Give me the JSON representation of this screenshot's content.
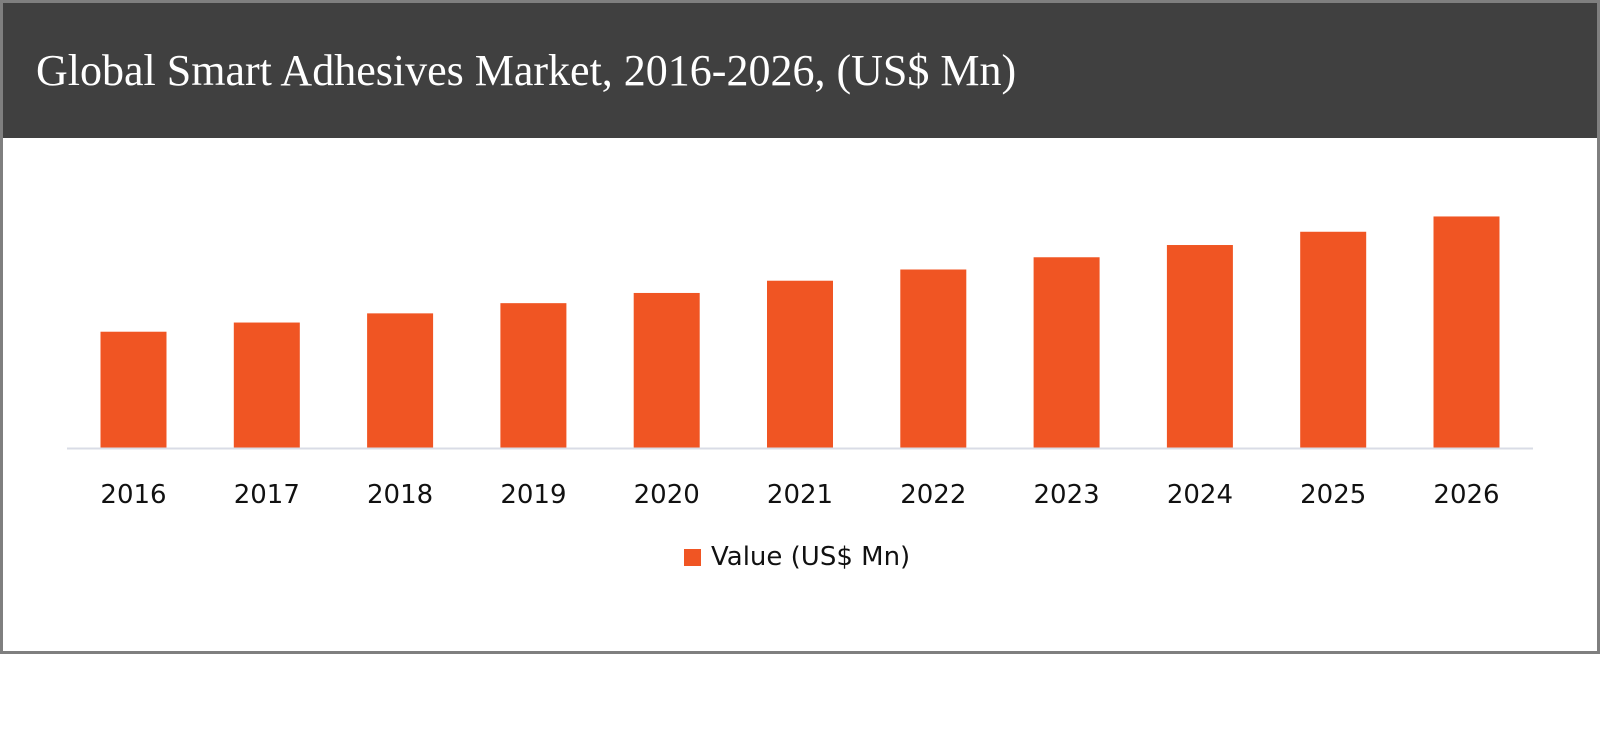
{
  "chart_data": {
    "type": "bar",
    "title": "Global Smart Adhesives Market, 2016-2026, (US$ Mn)",
    "categories": [
      "2016",
      "2017",
      "2018",
      "2019",
      "2020",
      "2021",
      "2022",
      "2023",
      "2024",
      "2025",
      "2026"
    ],
    "series": [
      {
        "name": "Value (US$ Mn)",
        "values": [
          114,
          123,
          132,
          142,
          152,
          164,
          175,
          187,
          199,
          212,
          227
        ]
      }
    ],
    "values_note": "relative magnitudes; no value axis shown",
    "xlabel": "",
    "ylabel": "",
    "ylim": [
      0,
      240
    ],
    "grid": false,
    "legend_position": "bottom",
    "colors": {
      "bar": "#F05523",
      "header": "#404040",
      "axis": "#d9dce6"
    }
  }
}
